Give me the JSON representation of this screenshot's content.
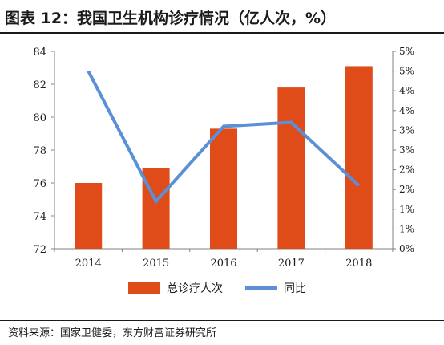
{
  "title": "图表 12：我国卫生机构诊疗情况（亿人次，%）",
  "source": "资料来源：国家卫健委，东方财富证券研究所",
  "colors": {
    "bar": "#e04b1a",
    "line": "#5b8fd6",
    "axis": "#808080",
    "text": "#1a1a1a"
  },
  "chart_data": {
    "type": "bar",
    "categories": [
      "2014",
      "2015",
      "2016",
      "2017",
      "2018"
    ],
    "series": [
      {
        "name": "总诊疗人次",
        "type": "bar",
        "axis": "left",
        "values": [
          76.0,
          76.9,
          79.3,
          81.8,
          83.1
        ]
      },
      {
        "name": "同比",
        "type": "line",
        "axis": "right",
        "values": [
          4.5,
          1.2,
          3.1,
          3.2,
          1.6
        ]
      }
    ],
    "ylim_left": [
      72,
      84
    ],
    "yticks_left": [
      "72",
      "74",
      "76",
      "78",
      "80",
      "82",
      "84"
    ],
    "ylim_right": [
      0,
      5
    ],
    "yticks_right": [
      "0%",
      "1%",
      "1%",
      "2%",
      "2%",
      "3%",
      "3%",
      "4%",
      "4%",
      "5%",
      "5%"
    ],
    "legend_position": "bottom",
    "grid": false
  }
}
